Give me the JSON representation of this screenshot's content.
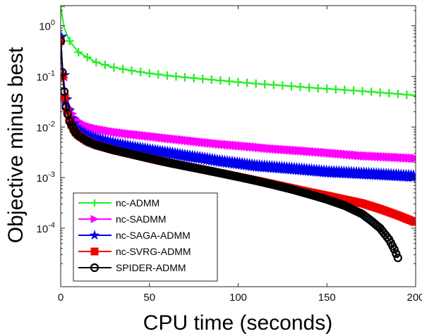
{
  "chart_data": {
    "type": "line",
    "xlabel": "CPU time (seconds)",
    "ylabel": "Objective minus best",
    "xlim": [
      0,
      200
    ],
    "ylim": [
      7e-06,
      2.5
    ],
    "yscale": "log",
    "grid": false,
    "legend_position": "bottom-left",
    "x_ticks": [
      0,
      50,
      100,
      150,
      200
    ],
    "y_ticks": [
      {
        "value": 0.0001,
        "base": "10",
        "exp": "-4"
      },
      {
        "value": 0.001,
        "base": "10",
        "exp": "-3"
      },
      {
        "value": 0.01,
        "base": "10",
        "exp": "-2"
      },
      {
        "value": 0.1,
        "base": "10",
        "exp": "-1"
      },
      {
        "value": 1,
        "base": "10",
        "exp": "0"
      }
    ],
    "series": [
      {
        "name": "nc-ADMM",
        "color": "#22ee22",
        "marker": "plus",
        "x": [
          0,
          2,
          5,
          10,
          20,
          30,
          40,
          50,
          60,
          70,
          80,
          90,
          100,
          110,
          120,
          130,
          140,
          150,
          160,
          170,
          180,
          190,
          200
        ],
        "y": [
          2.4,
          0.9,
          0.5,
          0.3,
          0.19,
          0.15,
          0.13,
          0.115,
          0.104,
          0.096,
          0.089,
          0.083,
          0.077,
          0.072,
          0.068,
          0.064,
          0.06,
          0.057,
          0.054,
          0.051,
          0.048,
          0.045,
          0.042
        ]
      },
      {
        "name": "nc-SADMM",
        "color": "#ff00ff",
        "marker": "triangle-right",
        "x": [
          0,
          1,
          2,
          3,
          5,
          8,
          10,
          15,
          20,
          30,
          40,
          50,
          60,
          70,
          80,
          90,
          100,
          110,
          120,
          130,
          140,
          150,
          160,
          170,
          180,
          190,
          200
        ],
        "y": [
          0.5,
          0.15,
          0.07,
          0.04,
          0.022,
          0.015,
          0.013,
          0.0105,
          0.0093,
          0.008,
          0.0072,
          0.0066,
          0.006,
          0.0055,
          0.005,
          0.0046,
          0.0043,
          0.004,
          0.0037,
          0.0035,
          0.0033,
          0.0031,
          0.0029,
          0.0027,
          0.0026,
          0.0025,
          0.0024
        ]
      },
      {
        "name": "nc-SAGA-ADMM",
        "color": "#0000ee",
        "marker": "star",
        "x": [
          0,
          1,
          2,
          3,
          5,
          8,
          10,
          15,
          20,
          30,
          40,
          50,
          60,
          70,
          80,
          90,
          100,
          110,
          120,
          130,
          140,
          150,
          160,
          170,
          180,
          190,
          200
        ],
        "y": [
          0.6,
          0.15,
          0.06,
          0.03,
          0.016,
          0.01,
          0.0085,
          0.0068,
          0.0058,
          0.0047,
          0.004,
          0.0035,
          0.0031,
          0.0027,
          0.0024,
          0.0021,
          0.0019,
          0.0017,
          0.0016,
          0.0015,
          0.0014,
          0.0013,
          0.00125,
          0.0012,
          0.00115,
          0.0011,
          0.00105
        ]
      },
      {
        "name": "nc-SVRG-ADMM",
        "color": "#ee0000",
        "marker": "square",
        "x": [
          0,
          1,
          2,
          3,
          5,
          8,
          10,
          15,
          20,
          30,
          40,
          50,
          60,
          70,
          80,
          90,
          100,
          110,
          120,
          130,
          140,
          150,
          160,
          170,
          180,
          190,
          200
        ],
        "y": [
          0.5,
          0.12,
          0.05,
          0.025,
          0.013,
          0.008,
          0.0068,
          0.0052,
          0.0044,
          0.0035,
          0.0029,
          0.0024,
          0.002,
          0.0017,
          0.00145,
          0.00123,
          0.00104,
          0.00088,
          0.00074,
          0.00062,
          0.00052,
          0.00044,
          0.00037,
          0.00031,
          0.00024,
          0.00018,
          0.00013
        ]
      },
      {
        "name": "SPIDER-ADMM",
        "color": "#000000",
        "marker": "circle",
        "x": [
          0,
          1,
          2,
          3,
          5,
          8,
          10,
          15,
          20,
          30,
          40,
          50,
          60,
          70,
          80,
          90,
          100,
          110,
          120,
          130,
          140,
          150,
          160,
          170,
          175,
          180,
          185,
          188,
          190
        ],
        "y": [
          0.5,
          0.12,
          0.05,
          0.025,
          0.013,
          0.008,
          0.0068,
          0.0052,
          0.0044,
          0.0035,
          0.0029,
          0.0024,
          0.002,
          0.0017,
          0.00145,
          0.00123,
          0.00104,
          0.00087,
          0.00072,
          0.00059,
          0.00047,
          0.00037,
          0.00028,
          0.00019,
          0.00014,
          0.0001,
          6e-05,
          3.8e-05,
          2.6e-05
        ]
      }
    ]
  }
}
